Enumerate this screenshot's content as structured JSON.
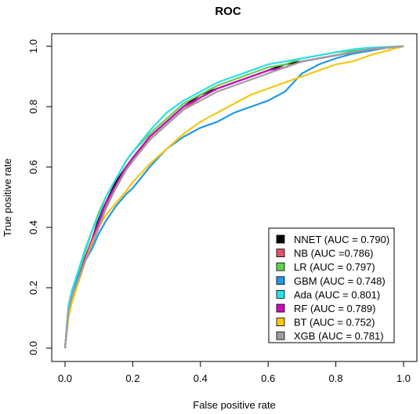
{
  "chart_data": {
    "type": "line",
    "title": "ROC",
    "xlabel": "False positive rate",
    "ylabel": "True positive rate",
    "xlim": [
      0,
      1
    ],
    "ylim": [
      0,
      1
    ],
    "xticks": [
      "0.0",
      "0.2",
      "0.4",
      "0.6",
      "0.8",
      "1.0"
    ],
    "yticks": [
      "0.0",
      "0.2",
      "0.4",
      "0.6",
      "0.8",
      "1.0"
    ],
    "grid": false,
    "legend_position": "bottom-right",
    "series": [
      {
        "name": "NNET (AUC = 0.790)",
        "color": "#000000",
        "x": [
          0,
          0.01,
          0.02,
          0.04,
          0.06,
          0.08,
          0.1,
          0.12,
          0.15,
          0.18,
          0.2,
          0.25,
          0.3,
          0.35,
          0.4,
          0.45,
          0.5,
          0.55,
          0.6,
          0.65,
          0.7,
          0.75,
          0.8,
          0.85,
          0.9,
          0.95,
          1.0
        ],
        "y": [
          0,
          0.12,
          0.17,
          0.23,
          0.3,
          0.36,
          0.43,
          0.48,
          0.55,
          0.6,
          0.63,
          0.7,
          0.75,
          0.8,
          0.84,
          0.86,
          0.88,
          0.9,
          0.92,
          0.94,
          0.95,
          0.96,
          0.97,
          0.98,
          0.99,
          0.995,
          1.0
        ]
      },
      {
        "name": "NB (AUC =0.786)",
        "color": "#DF536B",
        "x": [
          0,
          0.01,
          0.02,
          0.04,
          0.06,
          0.08,
          0.1,
          0.12,
          0.15,
          0.18,
          0.2,
          0.25,
          0.3,
          0.35,
          0.4,
          0.45,
          0.5,
          0.55,
          0.6,
          0.65,
          0.7,
          0.75,
          0.8,
          0.85,
          0.9,
          0.95,
          1.0
        ],
        "y": [
          0,
          0.11,
          0.16,
          0.22,
          0.29,
          0.35,
          0.41,
          0.47,
          0.53,
          0.59,
          0.62,
          0.69,
          0.74,
          0.79,
          0.83,
          0.86,
          0.88,
          0.9,
          0.92,
          0.93,
          0.95,
          0.96,
          0.97,
          0.98,
          0.99,
          0.995,
          1.0
        ]
      },
      {
        "name": "LR (AUC = 0.797)",
        "color": "#61D04F",
        "x": [
          0,
          0.01,
          0.02,
          0.04,
          0.06,
          0.08,
          0.1,
          0.12,
          0.15,
          0.18,
          0.2,
          0.25,
          0.3,
          0.35,
          0.4,
          0.45,
          0.5,
          0.55,
          0.6,
          0.65,
          0.7,
          0.75,
          0.8,
          0.85,
          0.9,
          0.95,
          1.0
        ],
        "y": [
          0,
          0.13,
          0.18,
          0.25,
          0.32,
          0.39,
          0.45,
          0.5,
          0.56,
          0.62,
          0.65,
          0.71,
          0.76,
          0.81,
          0.84,
          0.87,
          0.89,
          0.91,
          0.93,
          0.94,
          0.96,
          0.97,
          0.98,
          0.985,
          0.99,
          0.995,
          1.0
        ]
      },
      {
        "name": "GBM (AUC = 0.748)",
        "color": "#2297E6",
        "x": [
          0,
          0.01,
          0.02,
          0.04,
          0.06,
          0.08,
          0.1,
          0.12,
          0.15,
          0.18,
          0.2,
          0.25,
          0.3,
          0.35,
          0.4,
          0.45,
          0.5,
          0.55,
          0.6,
          0.65,
          0.7,
          0.75,
          0.8,
          0.85,
          0.9,
          0.95,
          1.0
        ],
        "y": [
          0,
          0.13,
          0.18,
          0.24,
          0.29,
          0.33,
          0.38,
          0.42,
          0.47,
          0.51,
          0.53,
          0.6,
          0.66,
          0.7,
          0.73,
          0.75,
          0.78,
          0.8,
          0.82,
          0.85,
          0.91,
          0.94,
          0.96,
          0.975,
          0.985,
          0.995,
          1.0
        ]
      },
      {
        "name": "Ada (AUC = 0.801)",
        "color": "#28E2E5",
        "x": [
          0,
          0.01,
          0.02,
          0.04,
          0.06,
          0.08,
          0.1,
          0.12,
          0.15,
          0.18,
          0.2,
          0.25,
          0.3,
          0.35,
          0.4,
          0.45,
          0.5,
          0.55,
          0.6,
          0.65,
          0.7,
          0.75,
          0.8,
          0.85,
          0.9,
          0.95,
          1.0
        ],
        "y": [
          0,
          0.14,
          0.19,
          0.26,
          0.33,
          0.39,
          0.44,
          0.5,
          0.56,
          0.62,
          0.65,
          0.72,
          0.78,
          0.82,
          0.85,
          0.88,
          0.9,
          0.92,
          0.94,
          0.95,
          0.96,
          0.97,
          0.98,
          0.99,
          0.995,
          0.998,
          1.0
        ]
      },
      {
        "name": "RF (AUC = 0.789)",
        "color": "#CD0BBC",
        "x": [
          0,
          0.01,
          0.02,
          0.04,
          0.06,
          0.08,
          0.1,
          0.12,
          0.15,
          0.18,
          0.2,
          0.25,
          0.3,
          0.35,
          0.4,
          0.45,
          0.5,
          0.55,
          0.6,
          0.65,
          0.7,
          0.75,
          0.8,
          0.85,
          0.9,
          0.95,
          1.0
        ],
        "y": [
          0,
          0.12,
          0.17,
          0.23,
          0.3,
          0.36,
          0.42,
          0.48,
          0.54,
          0.6,
          0.63,
          0.7,
          0.75,
          0.8,
          0.83,
          0.86,
          0.88,
          0.9,
          0.92,
          0.93,
          0.95,
          0.96,
          0.97,
          0.98,
          0.99,
          0.995,
          1.0
        ]
      },
      {
        "name": "BT (AUC = 0.752)",
        "color": "#F5C710",
        "x": [
          0,
          0.01,
          0.02,
          0.04,
          0.06,
          0.08,
          0.1,
          0.12,
          0.15,
          0.18,
          0.2,
          0.25,
          0.3,
          0.35,
          0.4,
          0.45,
          0.5,
          0.55,
          0.6,
          0.65,
          0.7,
          0.75,
          0.8,
          0.85,
          0.9,
          0.95,
          1.0
        ],
        "y": [
          0,
          0.1,
          0.15,
          0.22,
          0.29,
          0.35,
          0.4,
          0.44,
          0.48,
          0.52,
          0.55,
          0.61,
          0.66,
          0.71,
          0.75,
          0.78,
          0.81,
          0.84,
          0.86,
          0.88,
          0.9,
          0.92,
          0.94,
          0.95,
          0.97,
          0.985,
          1.0
        ]
      },
      {
        "name": "XGB (AUC = 0.781)",
        "color": "#9E9E9E",
        "x": [
          0,
          0.01,
          0.02,
          0.04,
          0.06,
          0.08,
          0.1,
          0.12,
          0.15,
          0.18,
          0.2,
          0.25,
          0.3,
          0.35,
          0.4,
          0.45,
          0.5,
          0.55,
          0.6,
          0.65,
          0.7,
          0.75,
          0.8,
          0.85,
          0.9,
          0.95,
          1.0
        ],
        "y": [
          0,
          0.12,
          0.17,
          0.23,
          0.29,
          0.34,
          0.4,
          0.46,
          0.53,
          0.59,
          0.62,
          0.69,
          0.74,
          0.79,
          0.82,
          0.85,
          0.87,
          0.89,
          0.91,
          0.93,
          0.95,
          0.96,
          0.97,
          0.98,
          0.99,
          0.995,
          1.0
        ]
      }
    ]
  }
}
